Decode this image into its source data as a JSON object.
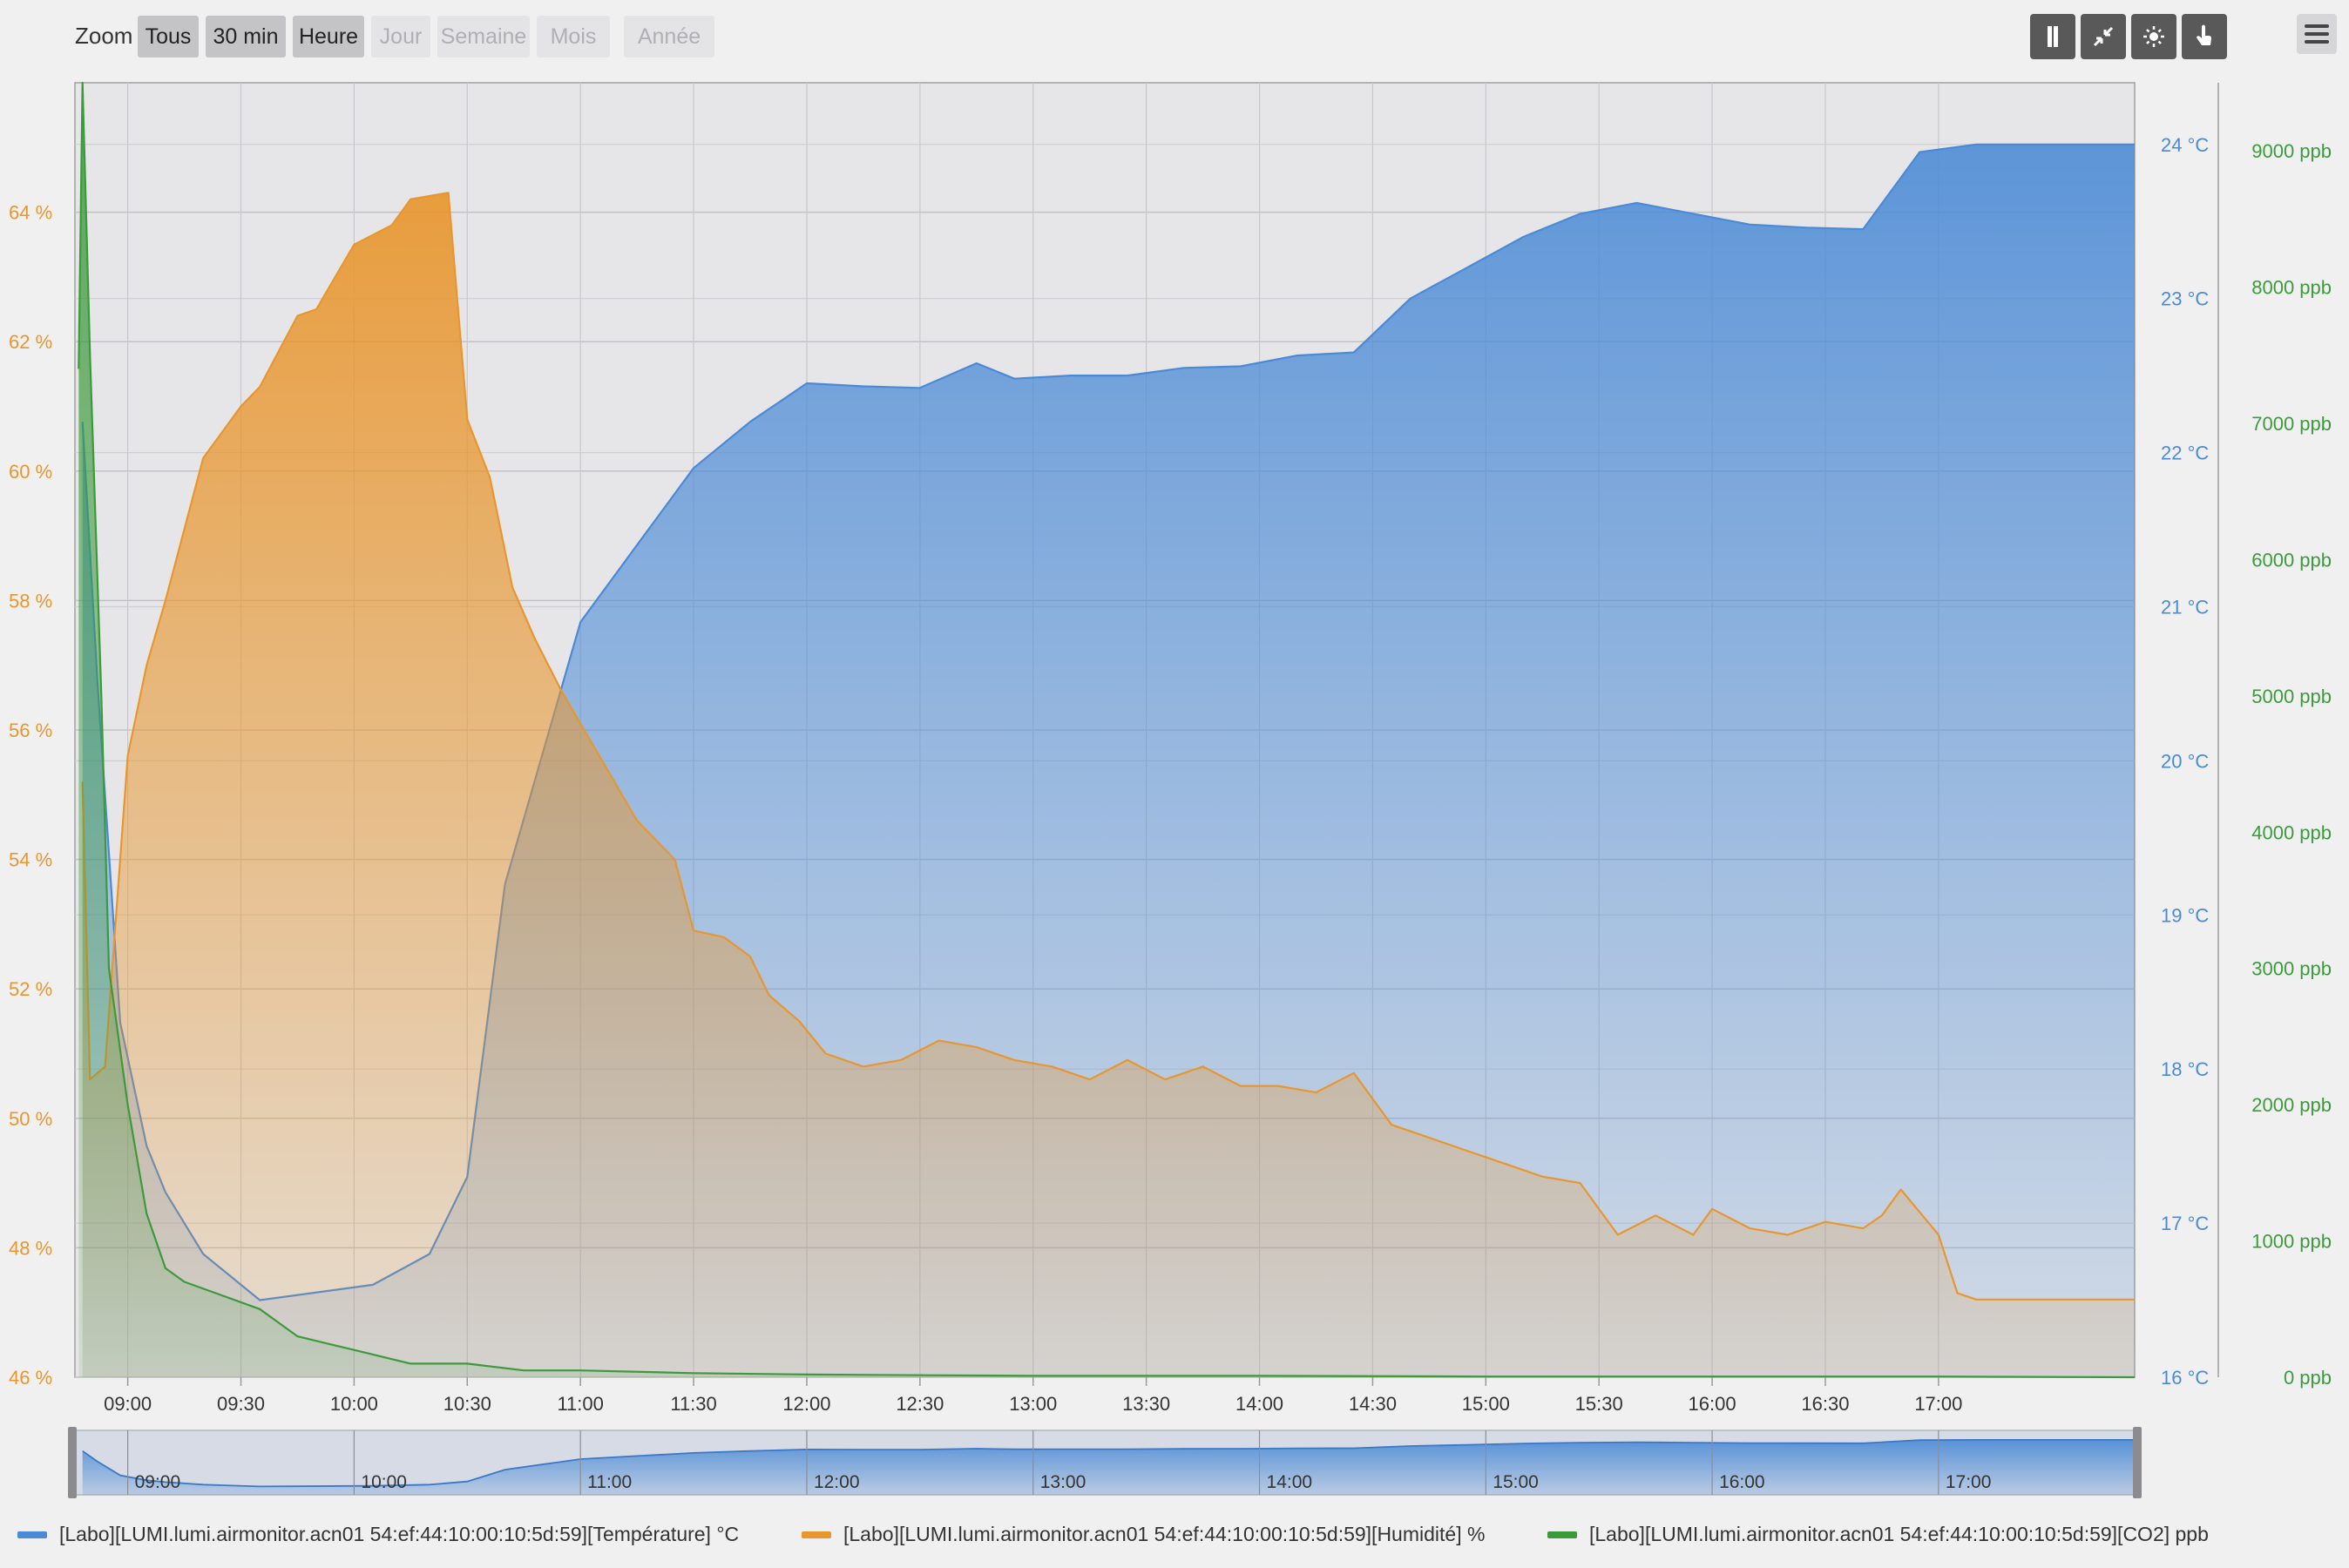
{
  "toolbar": {
    "zoom_label": "Zoom",
    "zoom_buttons": [
      {
        "label": "Tous",
        "enabled": true
      },
      {
        "label": "30 min",
        "enabled": true
      },
      {
        "label": "Heure",
        "enabled": true
      },
      {
        "label": "Jour",
        "enabled": false
      },
      {
        "label": "Semaine",
        "enabled": false
      },
      {
        "label": "Mois",
        "enabled": false
      },
      {
        "label": "Année",
        "enabled": false
      }
    ],
    "tool_icons": [
      "column-icon",
      "compress-icon",
      "brightness-icon",
      "hand-pointer-icon"
    ],
    "menu_icon": "hamburger-menu-icon"
  },
  "chart_data": {
    "type": "area",
    "x_unit": "time (HH:MM)",
    "x_ticks": [
      "09:00",
      "09:30",
      "10:00",
      "10:30",
      "11:00",
      "11:30",
      "12:00",
      "12:30",
      "13:00",
      "13:30",
      "14:00",
      "14:30",
      "15:00",
      "15:30",
      "16:00",
      "16:30",
      "17:00"
    ],
    "xlim": [
      "08:46",
      "17:52"
    ],
    "y_axes": [
      {
        "id": "humidity",
        "position": "left",
        "unit": "%",
        "range": [
          46,
          66
        ],
        "ticks": [
          "46 %",
          "48 %",
          "50 %",
          "52 %",
          "54 %",
          "56 %",
          "58 %",
          "60 %",
          "62 %",
          "64 %"
        ],
        "color": "#e8962e"
      },
      {
        "id": "temperature",
        "position": "right",
        "unit": "°C",
        "range": [
          16,
          24.4
        ],
        "ticks": [
          "16 °C",
          "17 °C",
          "18 °C",
          "19 °C",
          "20 °C",
          "21 °C",
          "22 °C",
          "23 °C",
          "24 °C"
        ],
        "color": "#4a8ad6"
      },
      {
        "id": "co2",
        "position": "right-outer",
        "unit": "ppb",
        "range": [
          0,
          9500
        ],
        "ticks": [
          "0 ppb",
          "1000 ppb",
          "2000 ppb",
          "3000 ppb",
          "4000 ppb",
          "5000 ppb",
          "6000 ppb",
          "7000 ppb",
          "8000 ppb",
          "9000 ppb"
        ],
        "color": "#3c9a3c"
      }
    ],
    "grid": true,
    "legend_position": "bottom",
    "series": [
      {
        "name": "[Labo][LUMI.lumi.airmonitor.acn01 54:ef:44:10:00:10:5d:59][Température] °C",
        "axis": "temperature",
        "color": "#4a8ad6",
        "points": [
          [
            "08:48",
            22.2
          ],
          [
            "08:52",
            20.5
          ],
          [
            "08:58",
            18.3
          ],
          [
            "09:05",
            17.5
          ],
          [
            "09:10",
            17.2
          ],
          [
            "09:20",
            16.8
          ],
          [
            "09:35",
            16.5
          ],
          [
            "10:05",
            16.6
          ],
          [
            "10:20",
            16.8
          ],
          [
            "10:30",
            17.3
          ],
          [
            "10:40",
            19.2
          ],
          [
            "11:00",
            20.9
          ],
          [
            "11:15",
            21.4
          ],
          [
            "11:30",
            21.9
          ],
          [
            "11:45",
            22.2
          ],
          [
            "12:00",
            22.45
          ],
          [
            "12:15",
            22.43
          ],
          [
            "12:30",
            22.42
          ],
          [
            "12:45",
            22.58
          ],
          [
            "12:55",
            22.48
          ],
          [
            "13:10",
            22.5
          ],
          [
            "13:25",
            22.5
          ],
          [
            "13:40",
            22.55
          ],
          [
            "13:55",
            22.56
          ],
          [
            "14:10",
            22.63
          ],
          [
            "14:25",
            22.65
          ],
          [
            "14:40",
            23.0
          ],
          [
            "14:55",
            23.2
          ],
          [
            "15:10",
            23.4
          ],
          [
            "15:25",
            23.55
          ],
          [
            "15:40",
            23.62
          ],
          [
            "15:55",
            23.55
          ],
          [
            "16:10",
            23.48
          ],
          [
            "16:25",
            23.46
          ],
          [
            "16:40",
            23.45
          ],
          [
            "16:55",
            23.95
          ],
          [
            "17:10",
            24.0
          ],
          [
            "17:52",
            24.0
          ]
        ]
      },
      {
        "name": "[Labo][LUMI.lumi.airmonitor.acn01 54:ef:44:10:00:10:5d:59][Humidité] %",
        "axis": "humidity",
        "color": "#e8962e",
        "points": [
          [
            "08:48",
            55.2
          ],
          [
            "08:50",
            50.6
          ],
          [
            "08:54",
            50.8
          ],
          [
            "09:00",
            55.6
          ],
          [
            "09:05",
            57.0
          ],
          [
            "09:10",
            58.0
          ],
          [
            "09:20",
            60.2
          ],
          [
            "09:30",
            61.0
          ],
          [
            "09:35",
            61.3
          ],
          [
            "09:45",
            62.4
          ],
          [
            "09:50",
            62.5
          ],
          [
            "10:00",
            63.5
          ],
          [
            "10:10",
            63.8
          ],
          [
            "10:15",
            64.2
          ],
          [
            "10:25",
            64.3
          ],
          [
            "10:30",
            60.8
          ],
          [
            "10:36",
            59.9
          ],
          [
            "10:42",
            58.2
          ],
          [
            "10:48",
            57.4
          ],
          [
            "10:55",
            56.6
          ],
          [
            "11:05",
            55.6
          ],
          [
            "11:15",
            54.6
          ],
          [
            "11:25",
            54.0
          ],
          [
            "11:30",
            52.9
          ],
          [
            "11:38",
            52.8
          ],
          [
            "11:45",
            52.5
          ],
          [
            "11:50",
            51.9
          ],
          [
            "11:58",
            51.5
          ],
          [
            "12:05",
            51.0
          ],
          [
            "12:15",
            50.8
          ],
          [
            "12:25",
            50.9
          ],
          [
            "12:35",
            51.2
          ],
          [
            "12:45",
            51.1
          ],
          [
            "12:55",
            50.9
          ],
          [
            "13:05",
            50.8
          ],
          [
            "13:15",
            50.6
          ],
          [
            "13:25",
            50.9
          ],
          [
            "13:35",
            50.6
          ],
          [
            "13:45",
            50.8
          ],
          [
            "13:55",
            50.5
          ],
          [
            "14:05",
            50.5
          ],
          [
            "14:15",
            50.4
          ],
          [
            "14:25",
            50.7
          ],
          [
            "14:35",
            49.9
          ],
          [
            "14:45",
            49.7
          ],
          [
            "14:55",
            49.5
          ],
          [
            "15:05",
            49.3
          ],
          [
            "15:15",
            49.1
          ],
          [
            "15:25",
            49.0
          ],
          [
            "15:35",
            48.2
          ],
          [
            "15:45",
            48.5
          ],
          [
            "15:55",
            48.2
          ],
          [
            "16:00",
            48.6
          ],
          [
            "16:10",
            48.3
          ],
          [
            "16:20",
            48.2
          ],
          [
            "16:30",
            48.4
          ],
          [
            "16:40",
            48.3
          ],
          [
            "16:45",
            48.5
          ],
          [
            "16:50",
            48.9
          ],
          [
            "17:00",
            48.2
          ],
          [
            "17:05",
            47.3
          ],
          [
            "17:10",
            47.2
          ],
          [
            "17:52",
            47.2
          ]
        ]
      },
      {
        "name": "[Labo][LUMI.lumi.airmonitor.acn01 54:ef:44:10:00:10:5d:59][CO2] ppb",
        "axis": "co2",
        "color": "#3c9a3c",
        "points": [
          [
            "08:47",
            7400
          ],
          [
            "08:48",
            9500
          ],
          [
            "08:50",
            7500
          ],
          [
            "08:53",
            5000
          ],
          [
            "08:55",
            3000
          ],
          [
            "09:00",
            2000
          ],
          [
            "09:05",
            1200
          ],
          [
            "09:10",
            800
          ],
          [
            "09:15",
            700
          ],
          [
            "09:25",
            600
          ],
          [
            "09:35",
            500
          ],
          [
            "09:45",
            300
          ],
          [
            "10:00",
            200
          ],
          [
            "10:15",
            100
          ],
          [
            "10:30",
            100
          ],
          [
            "10:45",
            50
          ],
          [
            "11:00",
            50
          ],
          [
            "11:30",
            30
          ],
          [
            "12:00",
            20
          ],
          [
            "13:00",
            10
          ],
          [
            "14:00",
            10
          ],
          [
            "15:00",
            5
          ],
          [
            "16:00",
            5
          ],
          [
            "17:00",
            5
          ],
          [
            "17:52",
            0
          ]
        ]
      }
    ],
    "navigator": {
      "x_ticks": [
        "09:00",
        "10:00",
        "11:00",
        "12:00",
        "13:00",
        "14:00",
        "15:00",
        "16:00",
        "17:00"
      ],
      "series": "temperature"
    }
  }
}
